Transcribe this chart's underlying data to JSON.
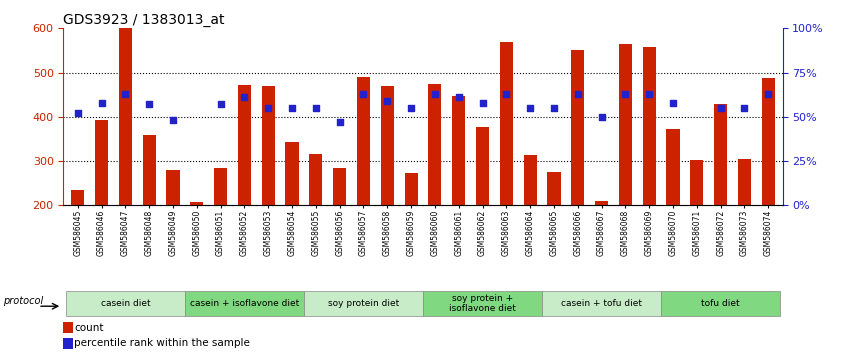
{
  "title": "GDS3923 / 1383013_at",
  "samples": [
    "GSM586045",
    "GSM586046",
    "GSM586047",
    "GSM586048",
    "GSM586049",
    "GSM586050",
    "GSM586051",
    "GSM586052",
    "GSM586053",
    "GSM586054",
    "GSM586055",
    "GSM586056",
    "GSM586057",
    "GSM586058",
    "GSM586059",
    "GSM586060",
    "GSM586061",
    "GSM586062",
    "GSM586063",
    "GSM586064",
    "GSM586065",
    "GSM586066",
    "GSM586067",
    "GSM586068",
    "GSM586069",
    "GSM586070",
    "GSM586071",
    "GSM586072",
    "GSM586073",
    "GSM586074"
  ],
  "counts": [
    235,
    393,
    600,
    360,
    280,
    207,
    285,
    472,
    470,
    343,
    315,
    285,
    490,
    470,
    272,
    475,
    447,
    378,
    570,
    313,
    275,
    552,
    210,
    565,
    557,
    373,
    303,
    430,
    305,
    487
  ],
  "percentile_ranks": [
    52,
    58,
    63,
    57,
    48,
    null,
    57,
    61,
    55,
    55,
    55,
    47,
    63,
    59,
    55,
    63,
    61,
    58,
    63,
    55,
    55,
    63,
    50,
    63,
    63,
    58,
    null,
    55,
    55,
    63
  ],
  "groups": [
    {
      "label": "casein diet",
      "start": 0,
      "end": 5,
      "color": "#c8ecc8"
    },
    {
      "label": "casein + isoflavone diet",
      "start": 5,
      "end": 10,
      "color": "#80d880"
    },
    {
      "label": "soy protein diet",
      "start": 10,
      "end": 15,
      "color": "#c8ecc8"
    },
    {
      "label": "soy protein +\nisoflavone diet",
      "start": 15,
      "end": 20,
      "color": "#80d880"
    },
    {
      "label": "casein + tofu diet",
      "start": 20,
      "end": 25,
      "color": "#c8ecc8"
    },
    {
      "label": "tofu diet",
      "start": 25,
      "end": 30,
      "color": "#80d880"
    }
  ],
  "bar_color": "#cc2200",
  "dot_color": "#2222cc",
  "ylim_left": [
    200,
    600
  ],
  "ylim_right": [
    0,
    100
  ],
  "yticks_left": [
    200,
    300,
    400,
    500,
    600
  ],
  "yticks_right": [
    0,
    25,
    50,
    75,
    100
  ],
  "ytick_labels_right": [
    "0%",
    "25%",
    "50%",
    "75%",
    "100%"
  ],
  "background_color": "#ffffff",
  "title_fontsize": 10,
  "axis_color_left": "#cc2200",
  "axis_color_right": "#2222cc",
  "gridline_color": "#000000",
  "gridline_ticks": [
    300,
    400,
    500
  ]
}
